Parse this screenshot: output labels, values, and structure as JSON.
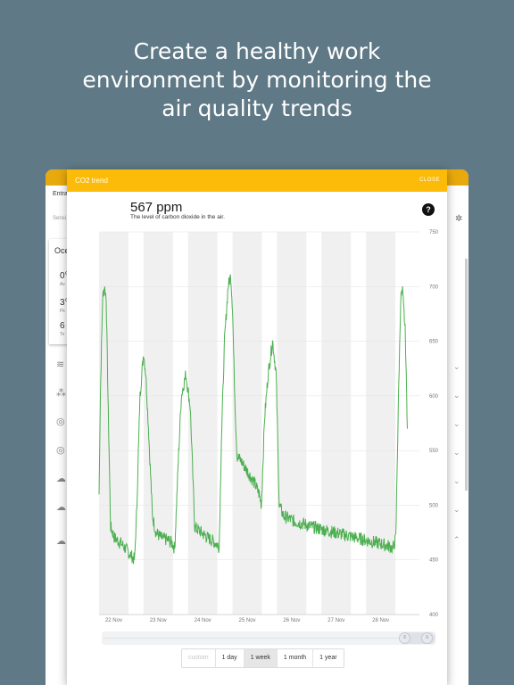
{
  "headline": {
    "line1": "Create a healthy work",
    "line2": "environment by monitoring the",
    "line3": "air quality trends"
  },
  "background_app": {
    "entry_label": "Entra",
    "search_label": "Sensi",
    "card_title": "Oce",
    "card_values": [
      {
        "value": "0°",
        "sub": "Av"
      },
      {
        "value": "3°",
        "sub": "Pk"
      },
      {
        "value": "6",
        "sub": "To"
      }
    ],
    "row_icons": [
      "wind-icon",
      "molecule-icon",
      "sensor-icon",
      "sensor-icon",
      "cloud-icon",
      "cloud-icon",
      "cloud-icon"
    ]
  },
  "modal": {
    "title": "CO2 trend",
    "close_label": "CLOSE",
    "value": "567 ppm",
    "description": "The level of carbon dioxide in the air.",
    "help_icon": "?"
  },
  "chart_data": {
    "type": "line",
    "title": "",
    "xlabel": "",
    "ylabel": "",
    "ylim": [
      400,
      750
    ],
    "y_ticks": [
      750,
      700,
      650,
      600,
      550,
      500,
      450,
      400
    ],
    "x_ticks": [
      "22 Nov",
      "23 Nov",
      "24 Nov",
      "25 Nov",
      "26 Nov",
      "27 Nov",
      "28 Nov"
    ],
    "xlim": [
      0,
      7.2
    ],
    "color": "#4caf50",
    "series": [
      {
        "values": [
          [
            0.0,
            510
          ],
          [
            0.03,
            600
          ],
          [
            0.08,
            690
          ],
          [
            0.12,
            700
          ],
          [
            0.16,
            690
          ],
          [
            0.2,
            600
          ],
          [
            0.26,
            480
          ],
          [
            0.35,
            470
          ],
          [
            0.5,
            465
          ],
          [
            0.6,
            460
          ],
          [
            0.7,
            455
          ],
          [
            0.8,
            450
          ],
          [
            0.85,
            500
          ],
          [
            0.92,
            600
          ],
          [
            1.0,
            640
          ],
          [
            1.05,
            620
          ],
          [
            1.1,
            580
          ],
          [
            1.2,
            490
          ],
          [
            1.28,
            475
          ],
          [
            1.4,
            470
          ],
          [
            1.55,
            468
          ],
          [
            1.65,
            465
          ],
          [
            1.7,
            460
          ],
          [
            1.78,
            540
          ],
          [
            1.85,
            600
          ],
          [
            1.95,
            620
          ],
          [
            2.05,
            590
          ],
          [
            2.15,
            480
          ],
          [
            2.3,
            475
          ],
          [
            2.45,
            470
          ],
          [
            2.6,
            466
          ],
          [
            2.7,
            462
          ],
          [
            2.75,
            560
          ],
          [
            2.82,
            650
          ],
          [
            2.9,
            700
          ],
          [
            2.96,
            710
          ],
          [
            3.0,
            680
          ],
          [
            3.05,
            600
          ],
          [
            3.1,
            545
          ],
          [
            3.2,
            540
          ],
          [
            3.35,
            530
          ],
          [
            3.5,
            520
          ],
          [
            3.6,
            510
          ],
          [
            3.65,
            500
          ],
          [
            3.72,
            580
          ],
          [
            3.8,
            620
          ],
          [
            3.9,
            650
          ],
          [
            3.98,
            620
          ],
          [
            4.05,
            500
          ],
          [
            4.15,
            490
          ],
          [
            4.4,
            485
          ],
          [
            4.6,
            483
          ],
          [
            4.8,
            480
          ],
          [
            5.0,
            478
          ],
          [
            5.2,
            476
          ],
          [
            5.4,
            474
          ],
          [
            5.6,
            472
          ],
          [
            5.8,
            470
          ],
          [
            6.0,
            468
          ],
          [
            6.2,
            466
          ],
          [
            6.4,
            464
          ],
          [
            6.55,
            462
          ],
          [
            6.6,
            460
          ],
          [
            6.67,
            470
          ],
          [
            6.72,
            580
          ],
          [
            6.78,
            690
          ],
          [
            6.82,
            695
          ],
          [
            6.88,
            660
          ],
          [
            6.93,
            570
          ]
        ]
      }
    ]
  },
  "range_selector": {
    "left_handle": "≡",
    "right_handle": "≡"
  },
  "periods": [
    {
      "label": "custom",
      "state": "disabled"
    },
    {
      "label": "1 day",
      "state": "normal"
    },
    {
      "label": "1 week",
      "state": "active"
    },
    {
      "label": "1 month",
      "state": "normal"
    },
    {
      "label": "1 year",
      "state": "normal"
    }
  ]
}
